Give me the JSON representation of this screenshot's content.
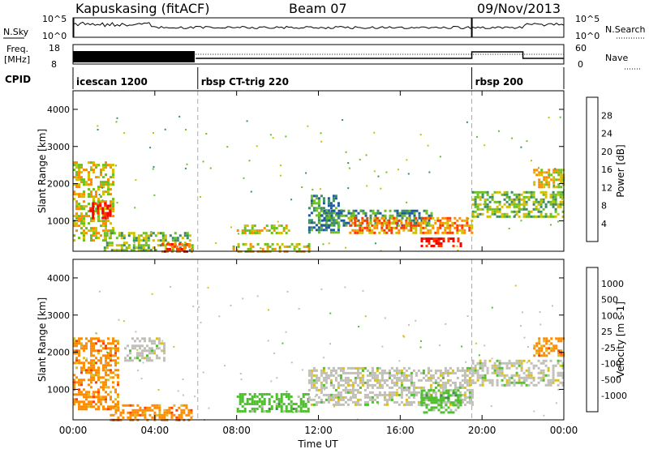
{
  "header": {
    "station": "Kapuskasing (fitACF)",
    "beam": "Beam 07",
    "date": "09/Nov/2013"
  },
  "time_axis": {
    "label": "Time UT",
    "ticks": [
      "00:00",
      "04:00",
      "08:00",
      "12:00",
      "16:00",
      "20:00",
      "00:00"
    ],
    "range_hours": [
      0,
      24
    ]
  },
  "nsky_panel": {
    "left_label": "N.Sky",
    "left_ticks": [
      "10^5",
      "10^0"
    ],
    "right_ticks": [
      "10^5",
      "10^0"
    ],
    "right_label": "N.Search"
  },
  "freq_panel": {
    "left_label_line1": "Freq.",
    "left_label_line2": "[MHz]",
    "left_ticks": [
      "18",
      "8"
    ],
    "right_ticks": [
      "60",
      "0"
    ],
    "right_label": "Nave"
  },
  "cpid_panel": {
    "label": "CPID",
    "segments": [
      {
        "name": "icescan 1200",
        "start_hour": 0
      },
      {
        "name": "rbsp CT-trig 220",
        "start_hour": 6.1
      },
      {
        "name": "rbsp 200",
        "start_hour": 19.5
      }
    ]
  },
  "power_panel": {
    "ylabel": "Slant Range [km]",
    "yticks": [
      "1000",
      "2000",
      "3000",
      "4000"
    ],
    "colorbar_label": "Power [dB]",
    "colorbar_ticks": [
      "28",
      "24",
      "20",
      "16",
      "12",
      "8",
      "4"
    ],
    "colors": [
      "#0000ff",
      "#1e5aa0",
      "#3c8c64",
      "#6cc020",
      "#d0c000",
      "#ff8c00",
      "#ff3800",
      "#ff0000"
    ]
  },
  "velocity_panel": {
    "ylabel": "Slant Range [km]",
    "yticks": [
      "1000",
      "2000",
      "3000",
      "4000"
    ],
    "colorbar_label": "Velocity [m s-1]",
    "colorbar_ticks": [
      "1000",
      "500",
      "100",
      "25",
      "-25",
      "-100",
      "-500",
      "-1000"
    ],
    "colors": [
      "#2050c0",
      "#3c7ab0",
      "#3c8c50",
      "#50c030",
      "#c0c0b8",
      "#d8c020",
      "#ff8c00",
      "#ff4000",
      "#ff0000"
    ]
  },
  "chart_data": [
    {
      "type": "heatmap",
      "title": "Power",
      "xlabel": "Time UT",
      "ylabel": "Slant Range [km]",
      "xlim": [
        0,
        24
      ],
      "ylim": [
        180,
        4500
      ],
      "colorbar": {
        "label": "Power [dB]",
        "range": [
          0,
          32
        ]
      },
      "regions": [
        {
          "t": [
            0.0,
            2.0
          ],
          "range_km": [
            500,
            2600
          ],
          "power_db": 14
        },
        {
          "t": [
            0.8,
            1.8
          ],
          "range_km": [
            1100,
            1500
          ],
          "power_db": 26
        },
        {
          "t": [
            1.5,
            5.8
          ],
          "range_km": [
            200,
            700
          ],
          "power_db": 12
        },
        {
          "t": [
            4.2,
            5.8
          ],
          "range_km": [
            200,
            400
          ],
          "power_db": 24
        },
        {
          "t": [
            8.0,
            10.5
          ],
          "range_km": [
            700,
            900
          ],
          "power_db": 14
        },
        {
          "t": [
            7.8,
            11.5
          ],
          "range_km": [
            200,
            400
          ],
          "power_db": 16
        },
        {
          "t": [
            11.5,
            13.0
          ],
          "range_km": [
            700,
            1700
          ],
          "power_db": 6
        },
        {
          "t": [
            12.0,
            17.5
          ],
          "range_km": [
            900,
            1300
          ],
          "power_db": 8
        },
        {
          "t": [
            13.5,
            19.5
          ],
          "range_km": [
            700,
            1100
          ],
          "power_db": 18
        },
        {
          "t": [
            17.0,
            19.0
          ],
          "range_km": [
            350,
            550
          ],
          "power_db": 28
        },
        {
          "t": [
            19.5,
            24.0
          ],
          "range_km": [
            1100,
            1800
          ],
          "power_db": 12
        },
        {
          "t": [
            22.5,
            24.0
          ],
          "range_km": [
            1900,
            2400
          ],
          "power_db": 16
        }
      ]
    },
    {
      "type": "heatmap",
      "title": "Velocity",
      "xlabel": "Time UT",
      "ylabel": "Slant Range [km]",
      "xlim": [
        0,
        24
      ],
      "ylim": [
        180,
        4500
      ],
      "colorbar": {
        "label": "Velocity [m s-1]",
        "range": [
          -1000,
          1000
        ]
      },
      "regions": [
        {
          "t": [
            0.0,
            2.2
          ],
          "range_km": [
            500,
            2400
          ],
          "velocity": -80
        },
        {
          "t": [
            1.8,
            5.8
          ],
          "range_km": [
            200,
            600
          ],
          "velocity": -60
        },
        {
          "t": [
            2.5,
            4.5
          ],
          "range_km": [
            1800,
            2400
          ],
          "velocity": 0
        },
        {
          "t": [
            8.0,
            11.5
          ],
          "range_km": [
            400,
            900
          ],
          "velocity": 60
        },
        {
          "t": [
            11.5,
            19.5
          ],
          "range_km": [
            600,
            1600
          ],
          "velocity": 0
        },
        {
          "t": [
            17.0,
            19.0
          ],
          "range_km": [
            400,
            1000
          ],
          "velocity": 50
        },
        {
          "t": [
            19.5,
            24.0
          ],
          "range_km": [
            1100,
            1800
          ],
          "velocity": 0
        },
        {
          "t": [
            22.5,
            24.0
          ],
          "range_km": [
            1900,
            2400
          ],
          "velocity": -150
        }
      ]
    }
  ]
}
